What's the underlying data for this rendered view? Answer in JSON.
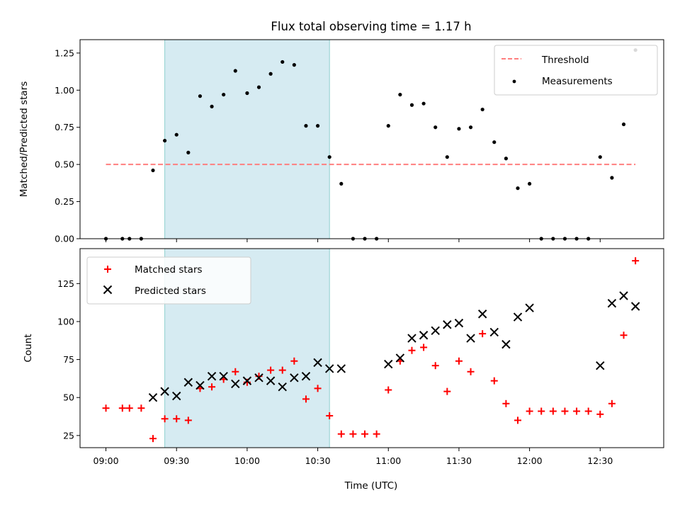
{
  "title": "Flux total observing time = 1.17 h",
  "xlabel": "Time (UTC)",
  "colors": {
    "shade": "#add8e6",
    "threshold": "#ff7f7f",
    "measurement": "#000000",
    "matched": "#ff0000",
    "predicted": "#000000"
  },
  "chart_data": [
    {
      "type": "scatter",
      "ylabel": "Matched/Predicted stars",
      "ylim": [
        0,
        1.34
      ],
      "yticks": [
        0.0,
        0.25,
        0.5,
        0.75,
        1.0,
        1.25
      ],
      "ytick_labels": [
        "0.00",
        "0.25",
        "0.50",
        "0.75",
        "1.00",
        "1.25"
      ],
      "xticks": [
        "09:00",
        "09:30",
        "10:00",
        "10:30",
        "11:00",
        "11:30",
        "12:00",
        "12:30"
      ],
      "xlim": [
        "08:49",
        "12:57"
      ],
      "shaded_interval": [
        "09:25",
        "10:35"
      ],
      "legend": {
        "position": "top-right",
        "entries": [
          "Threshold",
          "Measurements"
        ]
      },
      "threshold": {
        "name": "Threshold",
        "value": 0.5,
        "x": [
          "09:00",
          "12:45"
        ],
        "style": "dashed"
      },
      "series": [
        {
          "name": "Measurements",
          "marker": "dot",
          "points": [
            [
              "09:00",
              0.0
            ],
            [
              "09:07",
              0.0
            ],
            [
              "09:10",
              0.0
            ],
            [
              "09:15",
              0.0
            ],
            [
              "09:20",
              0.46
            ],
            [
              "09:25",
              0.66
            ],
            [
              "09:30",
              0.7
            ],
            [
              "09:35",
              0.58
            ],
            [
              "09:40",
              0.96
            ],
            [
              "09:45",
              0.89
            ],
            [
              "09:50",
              0.97
            ],
            [
              "09:55",
              1.13
            ],
            [
              "10:00",
              0.98
            ],
            [
              "10:05",
              1.02
            ],
            [
              "10:10",
              1.11
            ],
            [
              "10:15",
              1.19
            ],
            [
              "10:20",
              1.17
            ],
            [
              "10:25",
              0.76
            ],
            [
              "10:30",
              0.76
            ],
            [
              "10:35",
              0.55
            ],
            [
              "10:40",
              0.37
            ],
            [
              "10:45",
              0.0
            ],
            [
              "10:50",
              0.0
            ],
            [
              "10:55",
              0.0
            ],
            [
              "11:00",
              0.76
            ],
            [
              "11:05",
              0.97
            ],
            [
              "11:10",
              0.9
            ],
            [
              "11:15",
              0.91
            ],
            [
              "11:20",
              0.75
            ],
            [
              "11:25",
              0.55
            ],
            [
              "11:30",
              0.74
            ],
            [
              "11:35",
              0.75
            ],
            [
              "11:40",
              0.87
            ],
            [
              "11:45",
              0.65
            ],
            [
              "11:50",
              0.54
            ],
            [
              "11:55",
              0.34
            ],
            [
              "12:00",
              0.37
            ],
            [
              "12:05",
              0.0
            ],
            [
              "12:10",
              0.0
            ],
            [
              "12:15",
              0.0
            ],
            [
              "12:20",
              0.0
            ],
            [
              "12:25",
              0.0
            ],
            [
              "12:30",
              0.55
            ],
            [
              "12:35",
              0.41
            ],
            [
              "12:40",
              0.77
            ],
            [
              "12:45",
              1.27
            ]
          ]
        }
      ]
    },
    {
      "type": "scatter",
      "ylabel": "Count",
      "ylim": [
        17,
        148
      ],
      "yticks": [
        25,
        50,
        75,
        100,
        125
      ],
      "ytick_labels": [
        "25",
        "50",
        "75",
        "100",
        "125"
      ],
      "xticks": [
        "09:00",
        "09:30",
        "10:00",
        "10:30",
        "11:00",
        "11:30",
        "12:00",
        "12:30"
      ],
      "xlim": [
        "08:49",
        "12:57"
      ],
      "shaded_interval": [
        "09:25",
        "10:35"
      ],
      "legend": {
        "position": "top-left",
        "entries": [
          "Matched stars",
          "Predicted stars"
        ]
      },
      "series": [
        {
          "name": "Matched stars",
          "marker": "plus",
          "points": [
            [
              "09:00",
              43
            ],
            [
              "09:07",
              43
            ],
            [
              "09:10",
              43
            ],
            [
              "09:15",
              43
            ],
            [
              "09:20",
              23
            ],
            [
              "09:25",
              36
            ],
            [
              "09:30",
              36
            ],
            [
              "09:35",
              35
            ],
            [
              "09:40",
              56
            ],
            [
              "09:45",
              57
            ],
            [
              "09:50",
              62
            ],
            [
              "09:55",
              67
            ],
            [
              "10:00",
              60
            ],
            [
              "10:05",
              64
            ],
            [
              "10:10",
              68
            ],
            [
              "10:15",
              68
            ],
            [
              "10:20",
              74
            ],
            [
              "10:25",
              49
            ],
            [
              "10:30",
              56
            ],
            [
              "10:35",
              38
            ],
            [
              "10:40",
              26
            ],
            [
              "10:45",
              26
            ],
            [
              "10:50",
              26
            ],
            [
              "10:55",
              26
            ],
            [
              "11:00",
              55
            ],
            [
              "11:05",
              74
            ],
            [
              "11:10",
              81
            ],
            [
              "11:15",
              83
            ],
            [
              "11:20",
              71
            ],
            [
              "11:25",
              54
            ],
            [
              "11:30",
              74
            ],
            [
              "11:35",
              67
            ],
            [
              "11:40",
              92
            ],
            [
              "11:45",
              61
            ],
            [
              "11:50",
              46
            ],
            [
              "11:55",
              35
            ],
            [
              "12:00",
              41
            ],
            [
              "12:05",
              41
            ],
            [
              "12:10",
              41
            ],
            [
              "12:15",
              41
            ],
            [
              "12:20",
              41
            ],
            [
              "12:25",
              41
            ],
            [
              "12:30",
              39
            ],
            [
              "12:35",
              46
            ],
            [
              "12:40",
              91
            ],
            [
              "12:45",
              140
            ]
          ]
        },
        {
          "name": "Predicted stars",
          "marker": "x",
          "points": [
            [
              "09:20",
              50
            ],
            [
              "09:25",
              54
            ],
            [
              "09:30",
              51
            ],
            [
              "09:35",
              60
            ],
            [
              "09:40",
              58
            ],
            [
              "09:45",
              64
            ],
            [
              "09:50",
              64
            ],
            [
              "09:55",
              59
            ],
            [
              "10:00",
              61
            ],
            [
              "10:05",
              63
            ],
            [
              "10:10",
              61
            ],
            [
              "10:15",
              57
            ],
            [
              "10:20",
              63
            ],
            [
              "10:25",
              64
            ],
            [
              "10:30",
              73
            ],
            [
              "10:35",
              69
            ],
            [
              "10:40",
              69
            ],
            [
              "11:00",
              72
            ],
            [
              "11:05",
              76
            ],
            [
              "11:10",
              89
            ],
            [
              "11:15",
              91
            ],
            [
              "11:20",
              94
            ],
            [
              "11:25",
              98
            ],
            [
              "11:30",
              99
            ],
            [
              "11:35",
              89
            ],
            [
              "11:40",
              105
            ],
            [
              "11:45",
              93
            ],
            [
              "11:50",
              85
            ],
            [
              "11:55",
              103
            ],
            [
              "12:00",
              109
            ],
            [
              "12:30",
              71
            ],
            [
              "12:35",
              112
            ],
            [
              "12:40",
              117
            ],
            [
              "12:45",
              110
            ]
          ]
        }
      ]
    }
  ]
}
